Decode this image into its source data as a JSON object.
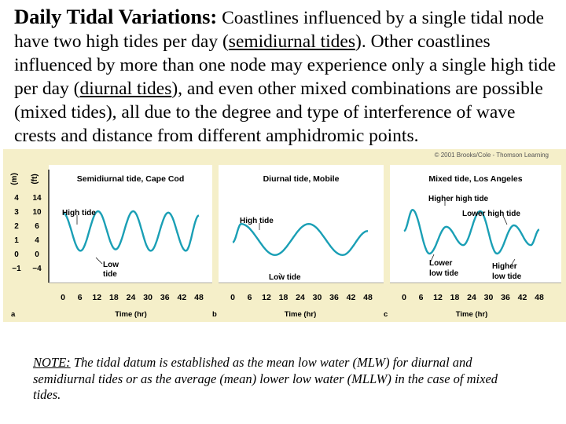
{
  "intro": {
    "title": "Daily Tidal Variations:",
    "p1": " Coastlines influenced by a single tidal node have two high tides per day (",
    "semidiurnal": "semidiurnal tides",
    "p2": ").  Other coastlines influenced by more than one node may experience only a single high tide per day (",
    "diurnal": "diurnal tides",
    "p3": "), and even other mixed combinations are possible (mixed tides), all due to the degree and type of interference of wave crests and distance from different amphidromic points."
  },
  "figure": {
    "copyright": "© 2001 Brooks/Cole - Thomson Learning",
    "axis_unit_m": "(m)",
    "axis_unit_ft": "(ft)",
    "colors": {
      "background": "#f5efc9",
      "panel": "#ffffff",
      "curve": "#1a9fb5",
      "axis": "#000000"
    },
    "chart_data": [
      {
        "type": "line",
        "panel": "a",
        "title": "Semidiurnal tide, Cape Cod",
        "xlabel": "Time (hr)",
        "x_ticks": [
          "0",
          "6",
          "12",
          "18",
          "24",
          "30",
          "36",
          "42",
          "48"
        ],
        "y_ticks_m": [
          "4",
          "3",
          "2",
          "1",
          "0",
          "−1"
        ],
        "y_ticks_ft": [
          "14",
          "10",
          "6",
          "4",
          "0",
          "−4"
        ],
        "xlim": [
          0,
          48
        ],
        "ylim": [
          -1,
          4
        ],
        "annotations": [
          "High tide",
          "Low tide"
        ],
        "series": [
          {
            "x": [
              0,
              6.2,
              12.4,
              18.6,
              24.8,
              31,
              37.2,
              43.4,
              48
            ],
            "y": [
              2.9,
              0.2,
              3,
              0.3,
              3,
              0.2,
              2.9,
              0.2,
              2.7
            ]
          }
        ]
      },
      {
        "type": "line",
        "panel": "b",
        "title": "Diurnal tide, Mobile",
        "xlabel": "Time (hr)",
        "x_ticks": [
          "0",
          "6",
          "12",
          "18",
          "24",
          "30",
          "36",
          "42",
          "48"
        ],
        "xlim": [
          0,
          48
        ],
        "ylim": [
          -1,
          4
        ],
        "annotations": [
          "High tide",
          "Low tide"
        ],
        "series": [
          {
            "x": [
              0,
              3,
              15,
              27,
              39,
              48
            ],
            "y": [
              0.8,
              2.1,
              -0.1,
              2.1,
              -0.1,
              1.6
            ]
          }
        ]
      },
      {
        "type": "line",
        "panel": "c",
        "title": "Mixed tide, Los Angeles",
        "xlabel": "Time (hr)",
        "x_ticks": [
          "0",
          "6",
          "12",
          "18",
          "24",
          "30",
          "36",
          "42",
          "48"
        ],
        "xlim": [
          0,
          48
        ],
        "ylim": [
          -1,
          4
        ],
        "annotations": [
          "Higher high tide",
          "Lower high tide",
          "Lower low tide",
          "Higher low tide"
        ],
        "series": [
          {
            "x": [
              0,
              3,
              9,
              15,
              21,
              27,
              33,
              39,
              45,
              48
            ],
            "y": [
              1.6,
              3.1,
              0,
              1.9,
              0.6,
              3.0,
              0,
              2.0,
              0.6,
              1.7
            ]
          }
        ]
      }
    ]
  },
  "note": {
    "label": "NOTE:",
    "text": " The tidal datum is established as the mean low water (MLW) for diurnal and semidiurnal tides or as the average (mean) lower low water (MLLW) in the case of mixed tides."
  }
}
